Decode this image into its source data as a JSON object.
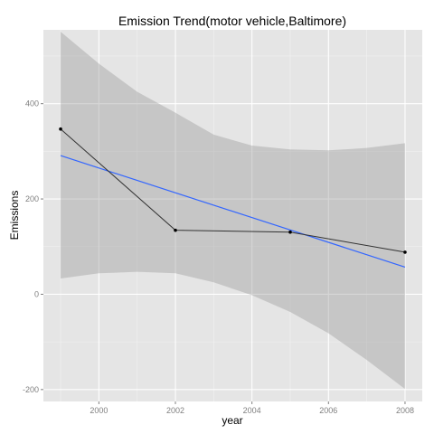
{
  "chart_data": {
    "type": "line",
    "title": "Emission Trend(motor vehicle,Baltimore)",
    "xlabel": "year",
    "ylabel": "Emissions",
    "x_ticks": [
      2000,
      2002,
      2004,
      2006,
      2008
    ],
    "y_ticks": [
      -200,
      0,
      200,
      400
    ],
    "xlim": [
      1998.55,
      2008.45
    ],
    "ylim": [
      -225,
      555
    ],
    "grid": true,
    "legend": "none",
    "series": [
      {
        "x": [
          1999,
          2002,
          2005,
          2008
        ],
        "y": [
          346.82,
          134.31,
          130.43,
          88.28
        ],
        "color": "#333333"
      }
    ],
    "trend": {
      "x": [
        1999,
        2008
      ],
      "y": [
        291,
        57
      ],
      "color": "#3366ff"
    },
    "confidence_band": {
      "x": [
        1999,
        2000,
        2001,
        2002,
        2003,
        2004,
        2005,
        2006,
        2007,
        2008
      ],
      "lower": [
        33,
        44,
        47,
        44,
        25,
        -2,
        -37,
        -82,
        -138,
        -199
      ],
      "upper": [
        551,
        484,
        425,
        381,
        335,
        312,
        304,
        302,
        307,
        317
      ],
      "color": "#999999"
    },
    "colors": {
      "panel": "#e5e5e5",
      "grid_major": "#ffffff",
      "grid_minor": "#f2f2f2",
      "tick_text": "#7f7f7f"
    }
  }
}
